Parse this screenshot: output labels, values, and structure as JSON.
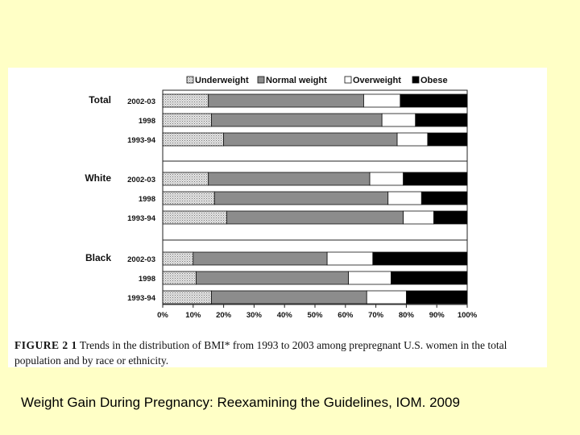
{
  "chart_data": {
    "type": "bar",
    "orientation": "horizontal",
    "stacked": true,
    "normalized": true,
    "legend_placement": "top",
    "grid": false,
    "xlim": [
      0,
      100
    ],
    "xticks": [
      "0%",
      "10%",
      "20%",
      "30%",
      "40%",
      "50%",
      "60%",
      "70%",
      "80%",
      "90%",
      "100%"
    ],
    "series": [
      {
        "name": "Underweight",
        "color": "#c8c8c8"
      },
      {
        "name": "Normal weight",
        "color": "#8c8c8c"
      },
      {
        "name": "Overweight",
        "color": "#ffffff"
      },
      {
        "name": "Obese",
        "color": "#000000"
      }
    ],
    "groups": [
      {
        "label": "Total",
        "bars": [
          {
            "year": "2002-03",
            "values": [
              15,
              51,
              12,
              22
            ]
          },
          {
            "year": "1998",
            "values": [
              16,
              56,
              11,
              17
            ]
          },
          {
            "year": "1993-94",
            "values": [
              20,
              57,
              10,
              13
            ]
          }
        ]
      },
      {
        "label": "White",
        "bars": [
          {
            "year": "2002-03",
            "values": [
              15,
              53,
              11,
              21
            ]
          },
          {
            "year": "1998",
            "values": [
              17,
              57,
              11,
              15
            ]
          },
          {
            "year": "1993-94",
            "values": [
              21,
              58,
              10,
              11
            ]
          }
        ]
      },
      {
        "label": "Black",
        "bars": [
          {
            "year": "2002-03",
            "values": [
              10,
              44,
              15,
              31
            ]
          },
          {
            "year": "1998",
            "values": [
              11,
              50,
              14,
              25
            ]
          },
          {
            "year": "1993-94",
            "values": [
              16,
              51,
              13,
              20
            ]
          }
        ]
      }
    ]
  },
  "caption": {
    "label": "FIGURE 2 1",
    "text": "Trends in the distribution of BMI* from 1993 to 2003 among prepregnant U.S. women in the total population and by race or ethnicity."
  },
  "source": "Weight Gain During Pregnancy:  Reexamining the Guidelines, IOM.  2009"
}
